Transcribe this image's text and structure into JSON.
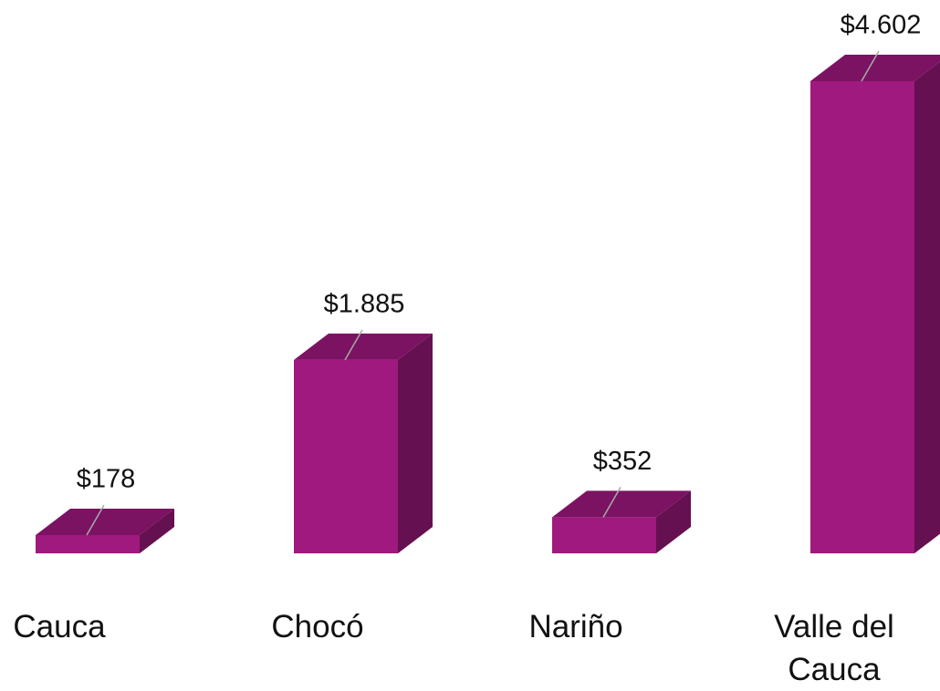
{
  "chart_data": {
    "type": "bar3d",
    "categories": [
      "Cauca",
      "Chocó",
      "Nariño",
      "Valle del Cauca"
    ],
    "values": [
      178,
      1885,
      352,
      4602
    ],
    "value_labels": [
      "$178",
      "$1.885",
      "$352",
      "$4.602"
    ],
    "color": "#a0197f"
  }
}
